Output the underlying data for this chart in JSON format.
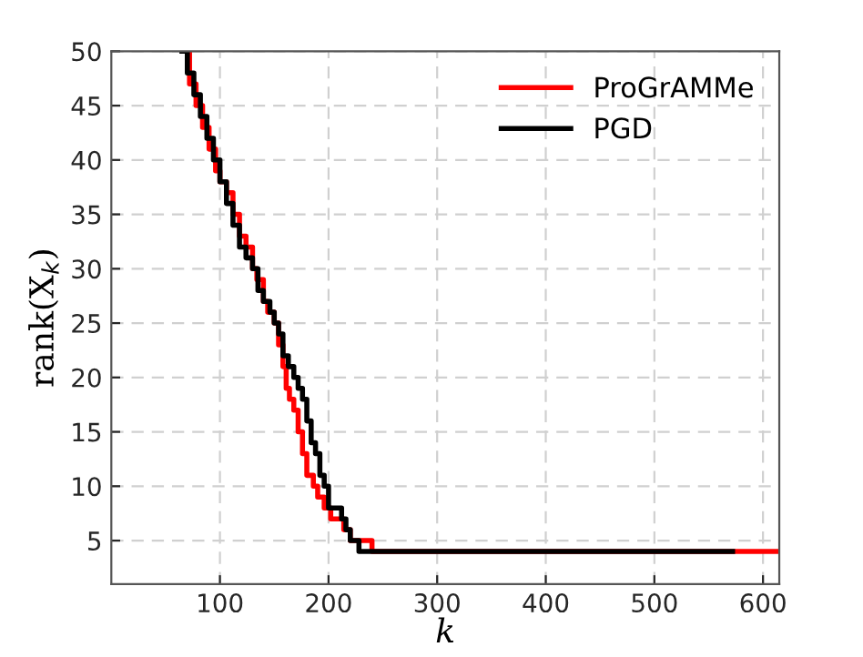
{
  "chart_data": {
    "type": "step",
    "xlabel": "k",
    "ylabel": "rank(X$_{k}$)",
    "xlim": [
      0,
      615
    ],
    "ylim": [
      1,
      50
    ],
    "xticks": [
      100,
      200,
      300,
      400,
      500,
      600
    ],
    "yticks": [
      5,
      10,
      15,
      20,
      25,
      30,
      35,
      40,
      45,
      50
    ],
    "grid": true,
    "legend": "top right",
    "line_style": "solid",
    "marker": "none",
    "series": [
      {
        "name": "ProGrAMMe",
        "color": "#ff0000",
        "x": [
          68,
          72,
          78,
          84,
          90,
          96,
          100,
          106,
          112,
          118,
          124,
          130,
          134,
          140,
          144,
          150,
          154,
          158,
          161,
          164,
          168,
          172,
          176,
          180,
          186,
          190,
          196,
          202,
          214,
          220,
          240,
          615
        ],
        "values": [
          50,
          47,
          45,
          43,
          41,
          39,
          38,
          37,
          35,
          33,
          32,
          30,
          29,
          27,
          26,
          25,
          23,
          21,
          19,
          18,
          17,
          15,
          13,
          11,
          10,
          9,
          8,
          7,
          6,
          5,
          4,
          4
        ]
      },
      {
        "name": "PGD",
        "color": "#000000",
        "x": [
          65,
          70,
          76,
          82,
          88,
          94,
          100,
          106,
          112,
          118,
          124,
          130,
          135,
          140,
          146,
          150,
          154,
          158,
          163,
          168,
          172,
          176,
          180,
          184,
          188,
          192,
          196,
          200,
          212,
          216,
          220,
          228,
          572
        ],
        "values": [
          50,
          48,
          46,
          44,
          42,
          40,
          38,
          36,
          34,
          32,
          31,
          30,
          28,
          27,
          26,
          25,
          24,
          22,
          21,
          20,
          19,
          18,
          16,
          14,
          13,
          11,
          10,
          8,
          7,
          6,
          5,
          4,
          4
        ]
      }
    ]
  }
}
